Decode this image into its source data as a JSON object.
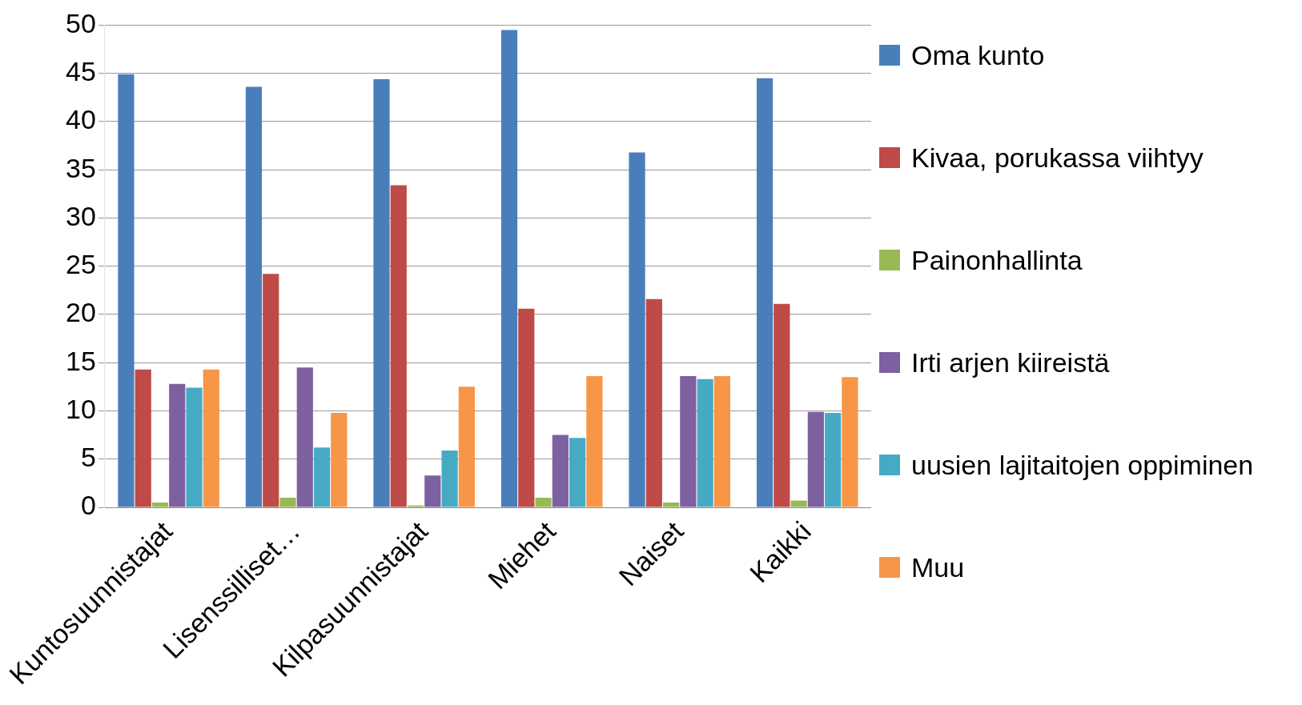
{
  "chart_data": {
    "type": "bar",
    "categories": [
      "Kuntosuunnistajat",
      "Lisenssilliset…",
      "Kilpasuunnistajat",
      "Miehet",
      "Naiset",
      "Kaikki"
    ],
    "series": [
      {
        "name": "Oma kunto",
        "color": "#4a7ebb",
        "values": [
          44.9,
          43.6,
          44.4,
          49.5,
          36.8,
          44.5
        ]
      },
      {
        "name": "Kivaa, porukassa viihtyy",
        "color": "#be4b48",
        "values": [
          14.3,
          24.2,
          33.4,
          20.6,
          21.6,
          21.1
        ]
      },
      {
        "name": "Painonhallinta",
        "color": "#98b954",
        "values": [
          0.5,
          1,
          0.2,
          1,
          0.5,
          0.7
        ]
      },
      {
        "name": "Irti arjen kiireistä",
        "color": "#7d60a0",
        "values": [
          12.8,
          14.5,
          3.3,
          7.5,
          13.6,
          9.9
        ]
      },
      {
        "name": "uusien lajitaitojen oppiminen",
        "color": "#46aac5",
        "values": [
          12.4,
          6.2,
          5.9,
          7.2,
          13.3,
          9.8
        ]
      },
      {
        "name": "Muu",
        "color": "#f79646",
        "values": [
          14.3,
          9.8,
          12.5,
          13.6,
          13.6,
          13.5
        ]
      }
    ],
    "ylim": [
      0,
      50
    ],
    "yticks": [
      0,
      5,
      10,
      15,
      20,
      25,
      30,
      35,
      40,
      45,
      50
    ],
    "grid": "y",
    "legend": "right"
  }
}
